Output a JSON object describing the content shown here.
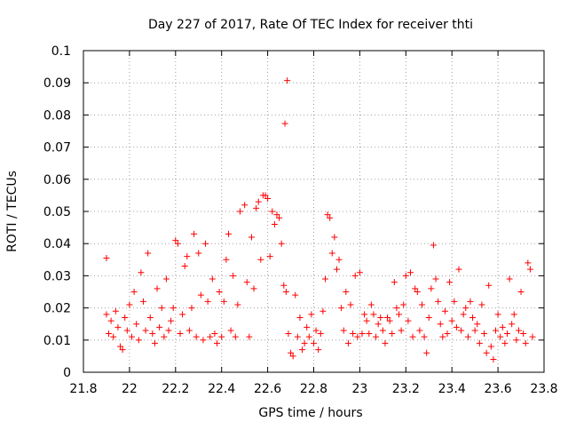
{
  "chart_data": {
    "type": "scatter",
    "title": "Day 227 of 2017, Rate Of TEC Index for receiver thti",
    "xlabel": "GPS time / hours",
    "ylabel": "ROTI / TECUs",
    "xlim": [
      21.8,
      23.8
    ],
    "ylim": [
      0,
      0.1
    ],
    "xticks": [
      "21.8",
      "22",
      "22.2",
      "22.4",
      "22.6",
      "22.8",
      "23",
      "23.2",
      "23.4",
      "23.6",
      "23.8"
    ],
    "yticks": [
      "0",
      "0.01",
      "0.02",
      "0.03",
      "0.04",
      "0.05",
      "0.06",
      "0.07",
      "0.08",
      "0.09",
      "0.1"
    ],
    "grid": true,
    "marker": "+",
    "color": "#ff0000",
    "series": [
      {
        "points": [
          [
            21.9,
            0.0355
          ],
          [
            21.9,
            0.018
          ],
          [
            21.91,
            0.012
          ],
          [
            21.92,
            0.016
          ],
          [
            21.93,
            0.011
          ],
          [
            21.94,
            0.019
          ],
          [
            21.95,
            0.014
          ],
          [
            21.96,
            0.008
          ],
          [
            21.97,
            0.007
          ],
          [
            21.98,
            0.017
          ],
          [
            21.99,
            0.013
          ],
          [
            22.0,
            0.021
          ],
          [
            22.01,
            0.011
          ],
          [
            22.02,
            0.025
          ],
          [
            22.03,
            0.015
          ],
          [
            22.04,
            0.01
          ],
          [
            22.05,
            0.031
          ],
          [
            22.06,
            0.022
          ],
          [
            22.07,
            0.013
          ],
          [
            22.08,
            0.037
          ],
          [
            22.09,
            0.017
          ],
          [
            22.1,
            0.012
          ],
          [
            22.11,
            0.009
          ],
          [
            22.12,
            0.026
          ],
          [
            22.13,
            0.014
          ],
          [
            22.14,
            0.02
          ],
          [
            22.15,
            0.011
          ],
          [
            22.16,
            0.029
          ],
          [
            22.17,
            0.013
          ],
          [
            22.18,
            0.016
          ],
          [
            22.19,
            0.02
          ],
          [
            22.2,
            0.041
          ],
          [
            22.21,
            0.04
          ],
          [
            22.22,
            0.012
          ],
          [
            22.23,
            0.018
          ],
          [
            22.24,
            0.033
          ],
          [
            22.25,
            0.036
          ],
          [
            22.26,
            0.013
          ],
          [
            22.27,
            0.02
          ],
          [
            22.28,
            0.043
          ],
          [
            22.29,
            0.011
          ],
          [
            22.3,
            0.037
          ],
          [
            22.31,
            0.024
          ],
          [
            22.32,
            0.01
          ],
          [
            22.33,
            0.04
          ],
          [
            22.34,
            0.022
          ],
          [
            22.35,
            0.011
          ],
          [
            22.36,
            0.029
          ],
          [
            22.37,
            0.012
          ],
          [
            22.38,
            0.009
          ],
          [
            22.39,
            0.025
          ],
          [
            22.4,
            0.011
          ],
          [
            22.41,
            0.022
          ],
          [
            22.42,
            0.035
          ],
          [
            22.43,
            0.043
          ],
          [
            22.44,
            0.013
          ],
          [
            22.45,
            0.03
          ],
          [
            22.46,
            0.011
          ],
          [
            22.47,
            0.021
          ],
          [
            22.48,
            0.05
          ],
          [
            22.5,
            0.052
          ],
          [
            22.51,
            0.028
          ],
          [
            22.52,
            0.011
          ],
          [
            22.53,
            0.042
          ],
          [
            22.54,
            0.026
          ],
          [
            22.55,
            0.051
          ],
          [
            22.56,
            0.053
          ],
          [
            22.57,
            0.035
          ],
          [
            22.58,
            0.055
          ],
          [
            22.59,
            0.055
          ],
          [
            22.6,
            0.054
          ],
          [
            22.61,
            0.036
          ],
          [
            22.62,
            0.05
          ],
          [
            22.63,
            0.046
          ],
          [
            22.64,
            0.049
          ],
          [
            22.65,
            0.048
          ],
          [
            22.66,
            0.04
          ],
          [
            22.67,
            0.027
          ],
          [
            22.675,
            0.0773
          ],
          [
            22.685,
            0.0907
          ],
          [
            22.68,
            0.025
          ],
          [
            22.69,
            0.012
          ],
          [
            22.7,
            0.006
          ],
          [
            22.71,
            0.005
          ],
          [
            22.72,
            0.024
          ],
          [
            22.73,
            0.011
          ],
          [
            22.74,
            0.017
          ],
          [
            22.75,
            0.007
          ],
          [
            22.76,
            0.009
          ],
          [
            22.77,
            0.014
          ],
          [
            22.78,
            0.011
          ],
          [
            22.79,
            0.018
          ],
          [
            22.8,
            0.009
          ],
          [
            22.81,
            0.013
          ],
          [
            22.82,
            0.007
          ],
          [
            22.83,
            0.012
          ],
          [
            22.84,
            0.019
          ],
          [
            22.85,
            0.029
          ],
          [
            22.86,
            0.049
          ],
          [
            22.87,
            0.048
          ],
          [
            22.88,
            0.037
          ],
          [
            22.89,
            0.042
          ],
          [
            22.9,
            0.032
          ],
          [
            22.91,
            0.035
          ],
          [
            22.92,
            0.02
          ],
          [
            22.93,
            0.013
          ],
          [
            22.94,
            0.025
          ],
          [
            22.95,
            0.009
          ],
          [
            22.96,
            0.021
          ],
          [
            22.97,
            0.012
          ],
          [
            22.98,
            0.03
          ],
          [
            22.99,
            0.011
          ],
          [
            23.0,
            0.031
          ],
          [
            23.01,
            0.012
          ],
          [
            23.02,
            0.018
          ],
          [
            23.03,
            0.016
          ],
          [
            23.04,
            0.012
          ],
          [
            23.05,
            0.021
          ],
          [
            23.06,
            0.018
          ],
          [
            23.07,
            0.011
          ],
          [
            23.08,
            0.015
          ],
          [
            23.09,
            0.017
          ],
          [
            23.1,
            0.013
          ],
          [
            23.11,
            0.009
          ],
          [
            23.12,
            0.017
          ],
          [
            23.13,
            0.016
          ],
          [
            23.14,
            0.012
          ],
          [
            23.15,
            0.028
          ],
          [
            23.16,
            0.02
          ],
          [
            23.17,
            0.018
          ],
          [
            23.18,
            0.013
          ],
          [
            23.19,
            0.021
          ],
          [
            23.2,
            0.03
          ],
          [
            23.21,
            0.016
          ],
          [
            23.22,
            0.031
          ],
          [
            23.23,
            0.011
          ],
          [
            23.24,
            0.026
          ],
          [
            23.25,
            0.025
          ],
          [
            23.26,
            0.013
          ],
          [
            23.27,
            0.021
          ],
          [
            23.28,
            0.011
          ],
          [
            23.29,
            0.006
          ],
          [
            23.3,
            0.017
          ],
          [
            23.31,
            0.026
          ],
          [
            23.32,
            0.0395
          ],
          [
            23.33,
            0.029
          ],
          [
            23.34,
            0.022
          ],
          [
            23.35,
            0.015
          ],
          [
            23.36,
            0.011
          ],
          [
            23.37,
            0.019
          ],
          [
            23.38,
            0.012
          ],
          [
            23.39,
            0.028
          ],
          [
            23.4,
            0.016
          ],
          [
            23.41,
            0.022
          ],
          [
            23.42,
            0.014
          ],
          [
            23.43,
            0.032
          ],
          [
            23.44,
            0.013
          ],
          [
            23.45,
            0.018
          ],
          [
            23.46,
            0.02
          ],
          [
            23.47,
            0.011
          ],
          [
            23.48,
            0.022
          ],
          [
            23.49,
            0.017
          ],
          [
            23.5,
            0.013
          ],
          [
            23.51,
            0.015
          ],
          [
            23.52,
            0.009
          ],
          [
            23.53,
            0.021
          ],
          [
            23.54,
            0.012
          ],
          [
            23.55,
            0.006
          ],
          [
            23.56,
            0.027
          ],
          [
            23.57,
            0.008
          ],
          [
            23.58,
            0.004
          ],
          [
            23.59,
            0.013
          ],
          [
            23.6,
            0.018
          ],
          [
            23.61,
            0.011
          ],
          [
            23.62,
            0.014
          ],
          [
            23.63,
            0.009
          ],
          [
            23.64,
            0.012
          ],
          [
            23.65,
            0.029
          ],
          [
            23.66,
            0.015
          ],
          [
            23.67,
            0.018
          ],
          [
            23.68,
            0.01
          ],
          [
            23.69,
            0.013
          ],
          [
            23.7,
            0.025
          ],
          [
            23.71,
            0.012
          ],
          [
            23.72,
            0.009
          ],
          [
            23.73,
            0.034
          ],
          [
            23.74,
            0.032
          ],
          [
            23.75,
            0.011
          ]
        ]
      }
    ]
  }
}
